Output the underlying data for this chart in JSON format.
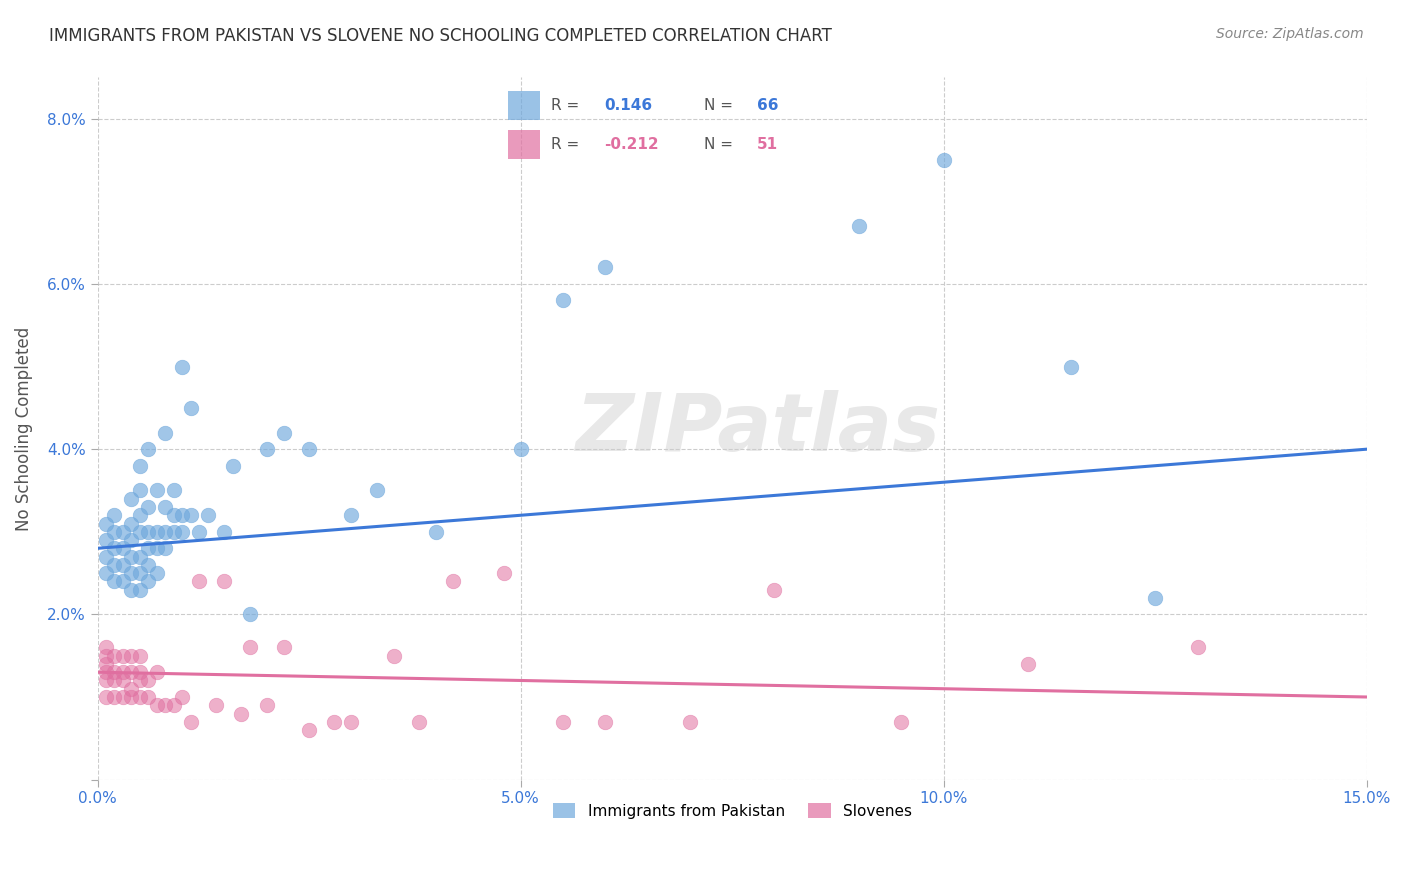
{
  "title": "IMMIGRANTS FROM PAKISTAN VS SLOVENE NO SCHOOLING COMPLETED CORRELATION CHART",
  "source": "Source: ZipAtlas.com",
  "ylabel": "No Schooling Completed",
  "xlim": [
    0.0,
    0.15
  ],
  "ylim": [
    0.0,
    0.085
  ],
  "xticks": [
    0.0,
    0.05,
    0.1,
    0.15
  ],
  "xtick_labels": [
    "0.0%",
    "5.0%",
    "10.0%",
    "15.0%"
  ],
  "yticks": [
    0.0,
    0.02,
    0.04,
    0.06,
    0.08
  ],
  "ytick_labels": [
    "",
    "2.0%",
    "4.0%",
    "6.0%",
    "8.0%"
  ],
  "pakistan_R": 0.146,
  "pakistan_N": 66,
  "slovene_R": -0.212,
  "slovene_N": 51,
  "pakistan_color": "#6fa8dc",
  "slovene_color": "#e06fa0",
  "pakistan_line_color": "#3c78d8",
  "slovene_line_color": "#e06fa0",
  "watermark": "ZIPatlas",
  "pakistan_line_start_y": 0.028,
  "pakistan_line_end_y": 0.04,
  "slovene_line_start_y": 0.013,
  "slovene_line_end_y": 0.01,
  "pakistan_scatter_x": [
    0.001,
    0.001,
    0.001,
    0.001,
    0.002,
    0.002,
    0.002,
    0.002,
    0.002,
    0.003,
    0.003,
    0.003,
    0.003,
    0.004,
    0.004,
    0.004,
    0.004,
    0.004,
    0.004,
    0.005,
    0.005,
    0.005,
    0.005,
    0.005,
    0.005,
    0.005,
    0.006,
    0.006,
    0.006,
    0.006,
    0.006,
    0.006,
    0.007,
    0.007,
    0.007,
    0.007,
    0.008,
    0.008,
    0.008,
    0.008,
    0.009,
    0.009,
    0.009,
    0.01,
    0.01,
    0.01,
    0.011,
    0.011,
    0.012,
    0.013,
    0.015,
    0.016,
    0.018,
    0.02,
    0.022,
    0.025,
    0.03,
    0.033,
    0.04,
    0.05,
    0.055,
    0.06,
    0.09,
    0.1,
    0.115,
    0.125
  ],
  "pakistan_scatter_y": [
    0.025,
    0.027,
    0.029,
    0.031,
    0.024,
    0.026,
    0.028,
    0.03,
    0.032,
    0.024,
    0.026,
    0.028,
    0.03,
    0.023,
    0.025,
    0.027,
    0.029,
    0.031,
    0.034,
    0.023,
    0.025,
    0.027,
    0.03,
    0.032,
    0.035,
    0.038,
    0.024,
    0.026,
    0.028,
    0.03,
    0.033,
    0.04,
    0.025,
    0.028,
    0.03,
    0.035,
    0.028,
    0.03,
    0.033,
    0.042,
    0.03,
    0.032,
    0.035,
    0.03,
    0.032,
    0.05,
    0.032,
    0.045,
    0.03,
    0.032,
    0.03,
    0.038,
    0.02,
    0.04,
    0.042,
    0.04,
    0.032,
    0.035,
    0.03,
    0.04,
    0.058,
    0.062,
    0.067,
    0.075,
    0.05,
    0.022
  ],
  "slovene_scatter_x": [
    0.001,
    0.001,
    0.001,
    0.001,
    0.001,
    0.001,
    0.002,
    0.002,
    0.002,
    0.002,
    0.003,
    0.003,
    0.003,
    0.003,
    0.004,
    0.004,
    0.004,
    0.004,
    0.005,
    0.005,
    0.005,
    0.005,
    0.006,
    0.006,
    0.007,
    0.007,
    0.008,
    0.009,
    0.01,
    0.011,
    0.012,
    0.014,
    0.015,
    0.017,
    0.018,
    0.02,
    0.022,
    0.025,
    0.028,
    0.03,
    0.035,
    0.038,
    0.042,
    0.048,
    0.055,
    0.06,
    0.07,
    0.08,
    0.095,
    0.11,
    0.13
  ],
  "slovene_scatter_y": [
    0.01,
    0.012,
    0.013,
    0.014,
    0.015,
    0.016,
    0.01,
    0.012,
    0.013,
    0.015,
    0.01,
    0.012,
    0.013,
    0.015,
    0.01,
    0.011,
    0.013,
    0.015,
    0.01,
    0.012,
    0.013,
    0.015,
    0.01,
    0.012,
    0.009,
    0.013,
    0.009,
    0.009,
    0.01,
    0.007,
    0.024,
    0.009,
    0.024,
    0.008,
    0.016,
    0.009,
    0.016,
    0.006,
    0.007,
    0.007,
    0.015,
    0.007,
    0.024,
    0.025,
    0.007,
    0.007,
    0.007,
    0.023,
    0.007,
    0.014,
    0.016
  ]
}
